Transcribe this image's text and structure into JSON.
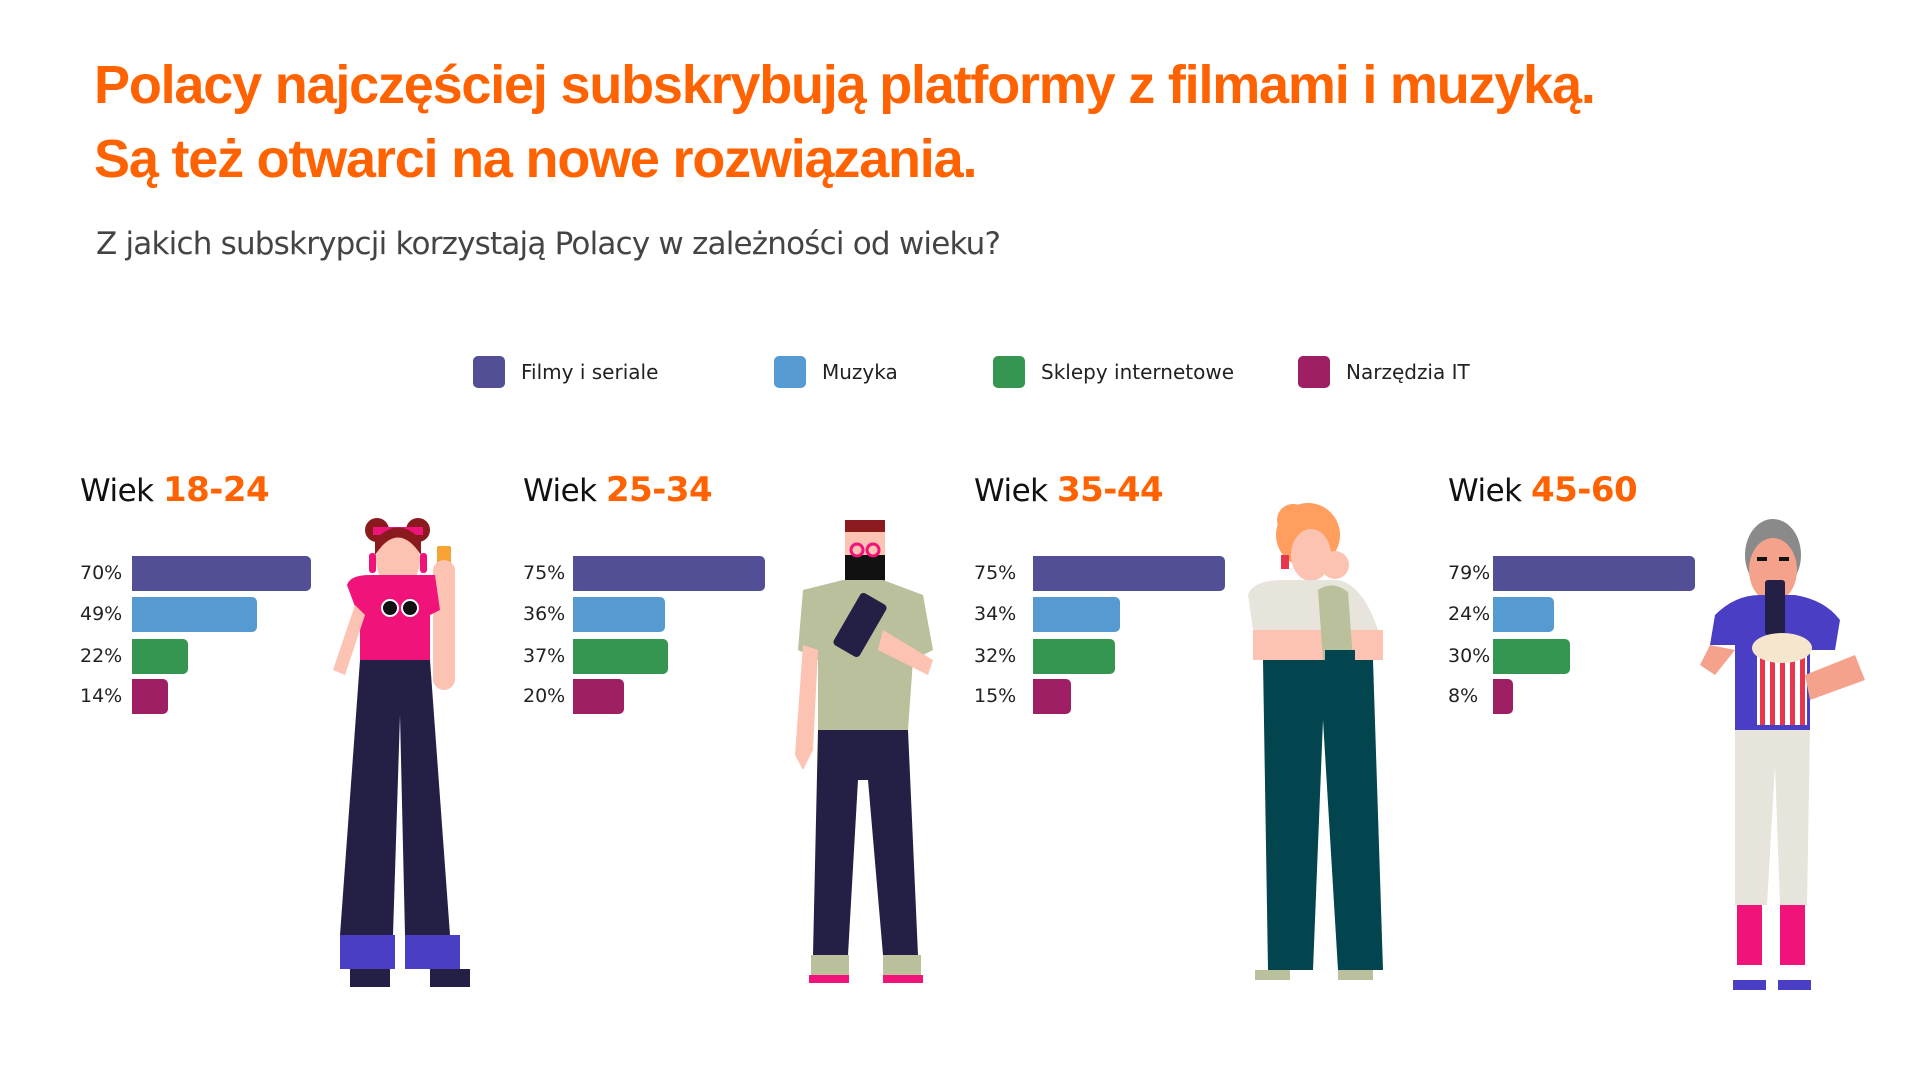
{
  "header": {
    "title_line1": "Polacy najczęściej subskrybują platformy z filmami i muzyką.",
    "title_line2": "Są też otwarci na nowe rozwiązania.",
    "subtitle": "Z jakich subskrypcji korzystają Polacy w zależności od wieku?"
  },
  "chart_data": {
    "type": "bar",
    "title": "Z jakich subskrypcji korzystają Polacy w zależności od wieku?",
    "legend": [
      {
        "name": "Filmy i seriale",
        "color": "#534F97"
      },
      {
        "name": "Muzyka",
        "color": "#559BD1"
      },
      {
        "name": "Sklepy internetowe",
        "color": "#349651"
      },
      {
        "name": "Narzędzia IT",
        "color": "#9E1F63"
      }
    ],
    "legend_placement": "top",
    "groups": [
      {
        "prefix": "Wiek",
        "age": "18-24",
        "values": [
          70,
          49,
          22,
          14
        ],
        "labels": [
          "70%",
          "49%",
          "22%",
          "14%"
        ]
      },
      {
        "prefix": "Wiek",
        "age": "25-34",
        "values": [
          75,
          36,
          37,
          20
        ],
        "labels": [
          "75%",
          "36%",
          "37%",
          "20%"
        ]
      },
      {
        "prefix": "Wiek",
        "age": "35-44",
        "values": [
          75,
          34,
          32,
          15
        ],
        "labels": [
          "75%",
          "34%",
          "32%",
          "15%"
        ]
      },
      {
        "prefix": "Wiek",
        "age": "45-60",
        "values": [
          79,
          24,
          30,
          8
        ],
        "labels": [
          "79%",
          "24%",
          "30%",
          "8%"
        ]
      }
    ],
    "unit": "%",
    "xlim": [
      0,
      100
    ]
  }
}
